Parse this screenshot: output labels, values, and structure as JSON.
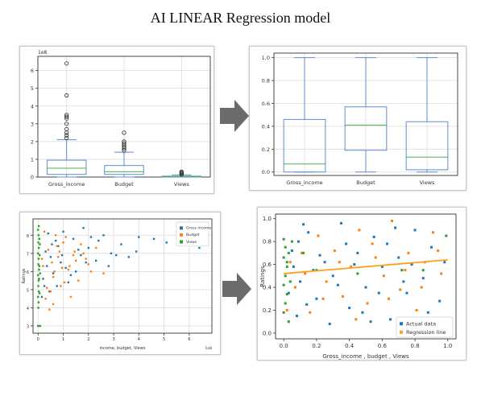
{
  "page": {
    "title": "AI LINEAR Regression model"
  },
  "colors": {
    "blue": "#1f77b4",
    "orange": "#ff7f0e",
    "green": "#2ca02c",
    "boxBlue": "#5b8fd1",
    "median": "#4caf50",
    "arrow": "#6b6b6b"
  },
  "chart_data": [
    {
      "type": "box",
      "id": "raw-boxplot",
      "categories": [
        "Gross_income",
        "Budget",
        "Views"
      ],
      "ylim": [
        0,
        6.8
      ],
      "yticks": [
        0,
        1,
        2,
        3,
        4,
        5,
        6
      ],
      "ytick_labels": [
        "0",
        "1",
        "2",
        "3",
        "4",
        "5",
        "6"
      ],
      "y_multiplier": "1e8",
      "grid": true,
      "boxes": [
        {
          "whisker_low": 0.0,
          "q1": 0.15,
          "median": 0.5,
          "q3": 0.95,
          "whisker_high": 2.1,
          "outliers": [
            2.2,
            2.35,
            2.5,
            2.7,
            3.0,
            3.3,
            3.4,
            3.5,
            4.6,
            6.4
          ]
        },
        {
          "whisker_low": 0.0,
          "q1": 0.15,
          "median": 0.3,
          "q3": 0.65,
          "whisker_high": 1.4,
          "outliers": [
            1.5,
            1.6,
            1.7,
            1.8,
            1.9,
            2.0,
            2.5
          ]
        },
        {
          "whisker_low": 0.0,
          "q1": 0.0,
          "median": 0.02,
          "q3": 0.05,
          "whisker_high": 0.12,
          "outliers": [
            0.15,
            0.2,
            0.25,
            0.3
          ]
        }
      ]
    },
    {
      "type": "box",
      "id": "normalized-boxplot",
      "categories": [
        "Gross_income",
        "Budget",
        "Views"
      ],
      "ylim": [
        -0.03,
        1.04
      ],
      "yticks": [
        0,
        0.2,
        0.4,
        0.6,
        0.8,
        1.0
      ],
      "ytick_labels": [
        "0.0",
        "0.2",
        "0.4",
        "0.6",
        "0.8",
        "1.0"
      ],
      "grid": true,
      "boxes": [
        {
          "whisker_low": 0.0,
          "q1": 0.0,
          "median": 0.07,
          "q3": 0.46,
          "whisker_high": 1.0,
          "outliers": []
        },
        {
          "whisker_low": 0.0,
          "q1": 0.19,
          "median": 0.41,
          "q3": 0.57,
          "whisker_high": 1.0,
          "outliers": []
        },
        {
          "whisker_low": 0.0,
          "q1": 0.02,
          "median": 0.13,
          "q3": 0.44,
          "whisker_high": 1.0,
          "outliers": []
        }
      ]
    },
    {
      "type": "scatter",
      "id": "raw-scatter",
      "xlabel": "income, budget, Views",
      "ylabel": "Ratings",
      "xlim": [
        -0.2,
        6.9
      ],
      "ylim": [
        2.6,
        8.9
      ],
      "xticks": [
        0,
        1,
        2,
        3,
        4,
        5,
        6
      ],
      "xtick_labels": [
        "0",
        "1",
        "2",
        "3",
        "4",
        "5",
        "6"
      ],
      "x_multiplier": "1e8",
      "yticks": [
        3,
        4,
        5,
        6,
        7,
        8
      ],
      "ytick_labels": [
        "3",
        "4",
        "5",
        "6",
        "7",
        "8"
      ],
      "grid": true,
      "legend": {
        "position": "top-right"
      },
      "series": [
        {
          "name": "Gross income",
          "color": "#1f77b4",
          "points": [
            [
              0.3,
              7.1
            ],
            [
              0.5,
              6.8
            ],
            [
              0.8,
              7.4
            ],
            [
              1.1,
              6.2
            ],
            [
              1.4,
              7.8
            ],
            [
              1.7,
              6.9
            ],
            [
              2.0,
              7.3
            ],
            [
              2.3,
              6.6
            ],
            [
              2.6,
              8.0
            ],
            [
              2.9,
              7.0
            ],
            [
              3.3,
              7.5
            ],
            [
              3.6,
              6.8
            ],
            [
              4.0,
              7.9
            ],
            [
              4.6,
              7.8
            ],
            [
              5.1,
              7.6
            ],
            [
              6.4,
              7.3
            ],
            [
              0.2,
              5.6
            ],
            [
              0.6,
              5.9
            ],
            [
              0.9,
              6.5
            ],
            [
              1.2,
              5.4
            ],
            [
              1.5,
              6.0
            ],
            [
              0.4,
              8.1
            ],
            [
              0.7,
              7.7
            ],
            [
              1.0,
              8.2
            ],
            [
              1.3,
              5.8
            ],
            [
              0.15,
              4.6
            ],
            [
              0.45,
              4.9
            ],
            [
              0.75,
              5.2
            ],
            [
              2.1,
              7.9
            ],
            [
              2.8,
              6.3
            ],
            [
              3.9,
              7.1
            ],
            [
              1.8,
              8.4
            ],
            [
              0.35,
              6.3
            ],
            [
              0.55,
              7.5
            ],
            [
              0.95,
              6.9
            ],
            [
              1.6,
              7.2
            ],
            [
              2.4,
              7.7
            ],
            [
              3.1,
              6.9
            ],
            [
              0.25,
              5.2
            ],
            [
              1.9,
              6.5
            ]
          ]
        },
        {
          "name": "Budget",
          "color": "#ff7f0e",
          "points": [
            [
              0.2,
              6.3
            ],
            [
              0.4,
              7.2
            ],
            [
              0.6,
              5.7
            ],
            [
              0.8,
              6.8
            ],
            [
              1.0,
              7.6
            ],
            [
              1.2,
              6.1
            ],
            [
              1.4,
              6.9
            ],
            [
              1.6,
              5.5
            ],
            [
              1.8,
              7.0
            ],
            [
              2.0,
              6.4
            ],
            [
              2.3,
              7.3
            ],
            [
              2.6,
              5.9
            ],
            [
              0.3,
              4.5
            ],
            [
              0.5,
              4.9
            ],
            [
              0.7,
              8.0
            ],
            [
              0.9,
              5.2
            ],
            [
              1.1,
              7.9
            ],
            [
              1.3,
              4.6
            ],
            [
              1.5,
              6.6
            ],
            [
              1.7,
              7.5
            ],
            [
              0.25,
              8.2
            ],
            [
              0.45,
              3.9
            ],
            [
              0.65,
              6.0
            ],
            [
              0.85,
              7.1
            ],
            [
              1.05,
              5.4
            ],
            [
              1.25,
              6.3
            ],
            [
              0.15,
              6.7
            ],
            [
              0.35,
              5.1
            ],
            [
              0.55,
              6.5
            ],
            [
              0.75,
              7.4
            ],
            [
              0.95,
              6.2
            ],
            [
              1.45,
              7.1
            ],
            [
              2.1,
              6.0
            ],
            [
              0.6,
              4.2
            ],
            [
              1.9,
              6.7
            ]
          ]
        },
        {
          "name": "Views",
          "color": "#2ca02c",
          "points": [
            [
              0.0,
              8.3
            ],
            [
              0.02,
              8.0
            ],
            [
              0.01,
              7.6
            ],
            [
              0.03,
              7.3
            ],
            [
              0.0,
              7.0
            ],
            [
              0.02,
              6.7
            ],
            [
              0.01,
              6.4
            ],
            [
              0.04,
              6.1
            ],
            [
              0.0,
              5.8
            ],
            [
              0.02,
              5.5
            ],
            [
              0.01,
              5.2
            ],
            [
              0.03,
              4.9
            ],
            [
              0.0,
              4.6
            ],
            [
              0.02,
              4.3
            ],
            [
              0.01,
              4.0
            ],
            [
              0.05,
              7.8
            ],
            [
              0.06,
              6.9
            ],
            [
              0.04,
              5.6
            ],
            [
              0.0,
              3.0
            ],
            [
              0.08,
              3.0
            ],
            [
              0.07,
              7.5
            ],
            [
              0.05,
              6.3
            ],
            [
              0.03,
              8.5
            ],
            [
              0.06,
              4.8
            ],
            [
              0.08,
              5.9
            ]
          ]
        }
      ]
    },
    {
      "type": "scatter",
      "id": "regression-scatter",
      "xlabel": "Gross_income , budget , Views",
      "ylabel": "Ratings",
      "xlim": [
        -0.05,
        1.05
      ],
      "ylim": [
        -0.05,
        1.04
      ],
      "xticks": [
        0,
        0.2,
        0.4,
        0.6,
        0.8,
        1.0
      ],
      "xtick_labels": [
        "0.0",
        "0.2",
        "0.4",
        "0.6",
        "0.8",
        "1.0"
      ],
      "yticks": [
        0,
        0.2,
        0.4,
        0.6,
        0.8,
        1.0
      ],
      "ytick_labels": [
        "0.0",
        "0.2",
        "0.4",
        "0.6",
        "0.8",
        "1.0"
      ],
      "grid": false,
      "legend": {
        "position": "bottom-right"
      },
      "regression_line": {
        "name": "Regression line",
        "color": "#ff9f1a",
        "x": [
          0.0,
          1.0
        ],
        "y": [
          0.52,
          0.64
        ]
      },
      "series": [
        {
          "name": "Actual data",
          "color": "#1f77b4",
          "points": [
            [
              0.05,
              0.72
            ],
            [
              0.1,
              0.45
            ],
            [
              0.15,
              0.88
            ],
            [
              0.2,
              0.3
            ],
            [
              0.25,
              0.62
            ],
            [
              0.3,
              0.5
            ],
            [
              0.35,
              0.96
            ],
            [
              0.4,
              0.22
            ],
            [
              0.45,
              0.7
            ],
            [
              0.5,
              0.4
            ],
            [
              0.55,
              0.84
            ],
            [
              0.6,
              0.58
            ],
            [
              0.65,
              0.12
            ],
            [
              0.7,
              0.66
            ],
            [
              0.75,
              0.35
            ],
            [
              0.8,
              0.9
            ],
            [
              0.85,
              0.48
            ],
            [
              0.9,
              0.75
            ],
            [
              0.95,
              0.28
            ],
            [
              0.98,
              0.62
            ],
            [
              0.08,
              0.15
            ],
            [
              0.12,
              0.95
            ],
            [
              0.18,
              0.55
            ],
            [
              0.28,
              0.08
            ],
            [
              0.38,
              0.78
            ],
            [
              0.48,
              0.18
            ],
            [
              0.58,
              0.35
            ],
            [
              0.68,
              0.92
            ],
            [
              0.78,
              0.6
            ],
            [
              0.88,
              0.18
            ],
            [
              0.03,
              0.35
            ],
            [
              0.06,
              0.58
            ],
            [
              0.09,
              0.8
            ],
            [
              0.14,
              0.25
            ],
            [
              0.22,
              0.68
            ],
            [
              0.33,
              0.42
            ],
            [
              0.43,
              0.6
            ],
            [
              0.53,
              0.1
            ],
            [
              0.63,
              0.78
            ],
            [
              0.73,
              0.45
            ]
          ]
        },
        {
          "name": "",
          "color": "#ff7f0e",
          "points": [
            [
              0.04,
              0.62
            ],
            [
              0.07,
              0.4
            ],
            [
              0.11,
              0.7
            ],
            [
              0.16,
              0.18
            ],
            [
              0.21,
              0.85
            ],
            [
              0.26,
              0.45
            ],
            [
              0.31,
              0.72
            ],
            [
              0.36,
              0.32
            ],
            [
              0.41,
              0.58
            ],
            [
              0.46,
              0.9
            ],
            [
              0.51,
              0.26
            ],
            [
              0.56,
              0.66
            ],
            [
              0.61,
              0.5
            ],
            [
              0.66,
              0.98
            ],
            [
              0.71,
              0.38
            ],
            [
              0.76,
              0.7
            ],
            [
              0.81,
              0.2
            ],
            [
              0.86,
              0.62
            ],
            [
              0.91,
              0.88
            ],
            [
              0.96,
              0.52
            ],
            [
              0.02,
              0.2
            ],
            [
              0.13,
              0.52
            ],
            [
              0.24,
              0.3
            ],
            [
              0.34,
              0.62
            ],
            [
              0.44,
              0.12
            ],
            [
              0.54,
              0.78
            ],
            [
              0.64,
              0.3
            ],
            [
              0.74,
              0.55
            ],
            [
              0.84,
              0.4
            ],
            [
              0.94,
              0.72
            ]
          ]
        },
        {
          "name": "",
          "color": "#2ca02c",
          "points": [
            [
              0.0,
              0.82
            ],
            [
              0.01,
              0.75
            ],
            [
              0.0,
              0.66
            ],
            [
              0.02,
              0.58
            ],
            [
              0.01,
              0.5
            ],
            [
              0.0,
              0.42
            ],
            [
              0.02,
              0.34
            ],
            [
              0.01,
              0.26
            ],
            [
              0.0,
              0.18
            ],
            [
              0.03,
              0.7
            ],
            [
              0.02,
              0.62
            ],
            [
              0.04,
              0.45
            ],
            [
              0.12,
              0.7
            ],
            [
              0.2,
              0.55
            ],
            [
              0.45,
              0.52
            ],
            [
              0.72,
              0.55
            ],
            [
              0.85,
              0.55
            ],
            [
              0.99,
              0.85
            ],
            [
              0.05,
              0.8
            ],
            [
              0.03,
              0.1
            ]
          ]
        }
      ],
      "legend_entries": [
        {
          "label": "Actual data",
          "color": "#1f77b4",
          "marker": "square"
        },
        {
          "label": "Regression line",
          "color": "#ff9f1a",
          "marker": "square"
        }
      ]
    }
  ]
}
